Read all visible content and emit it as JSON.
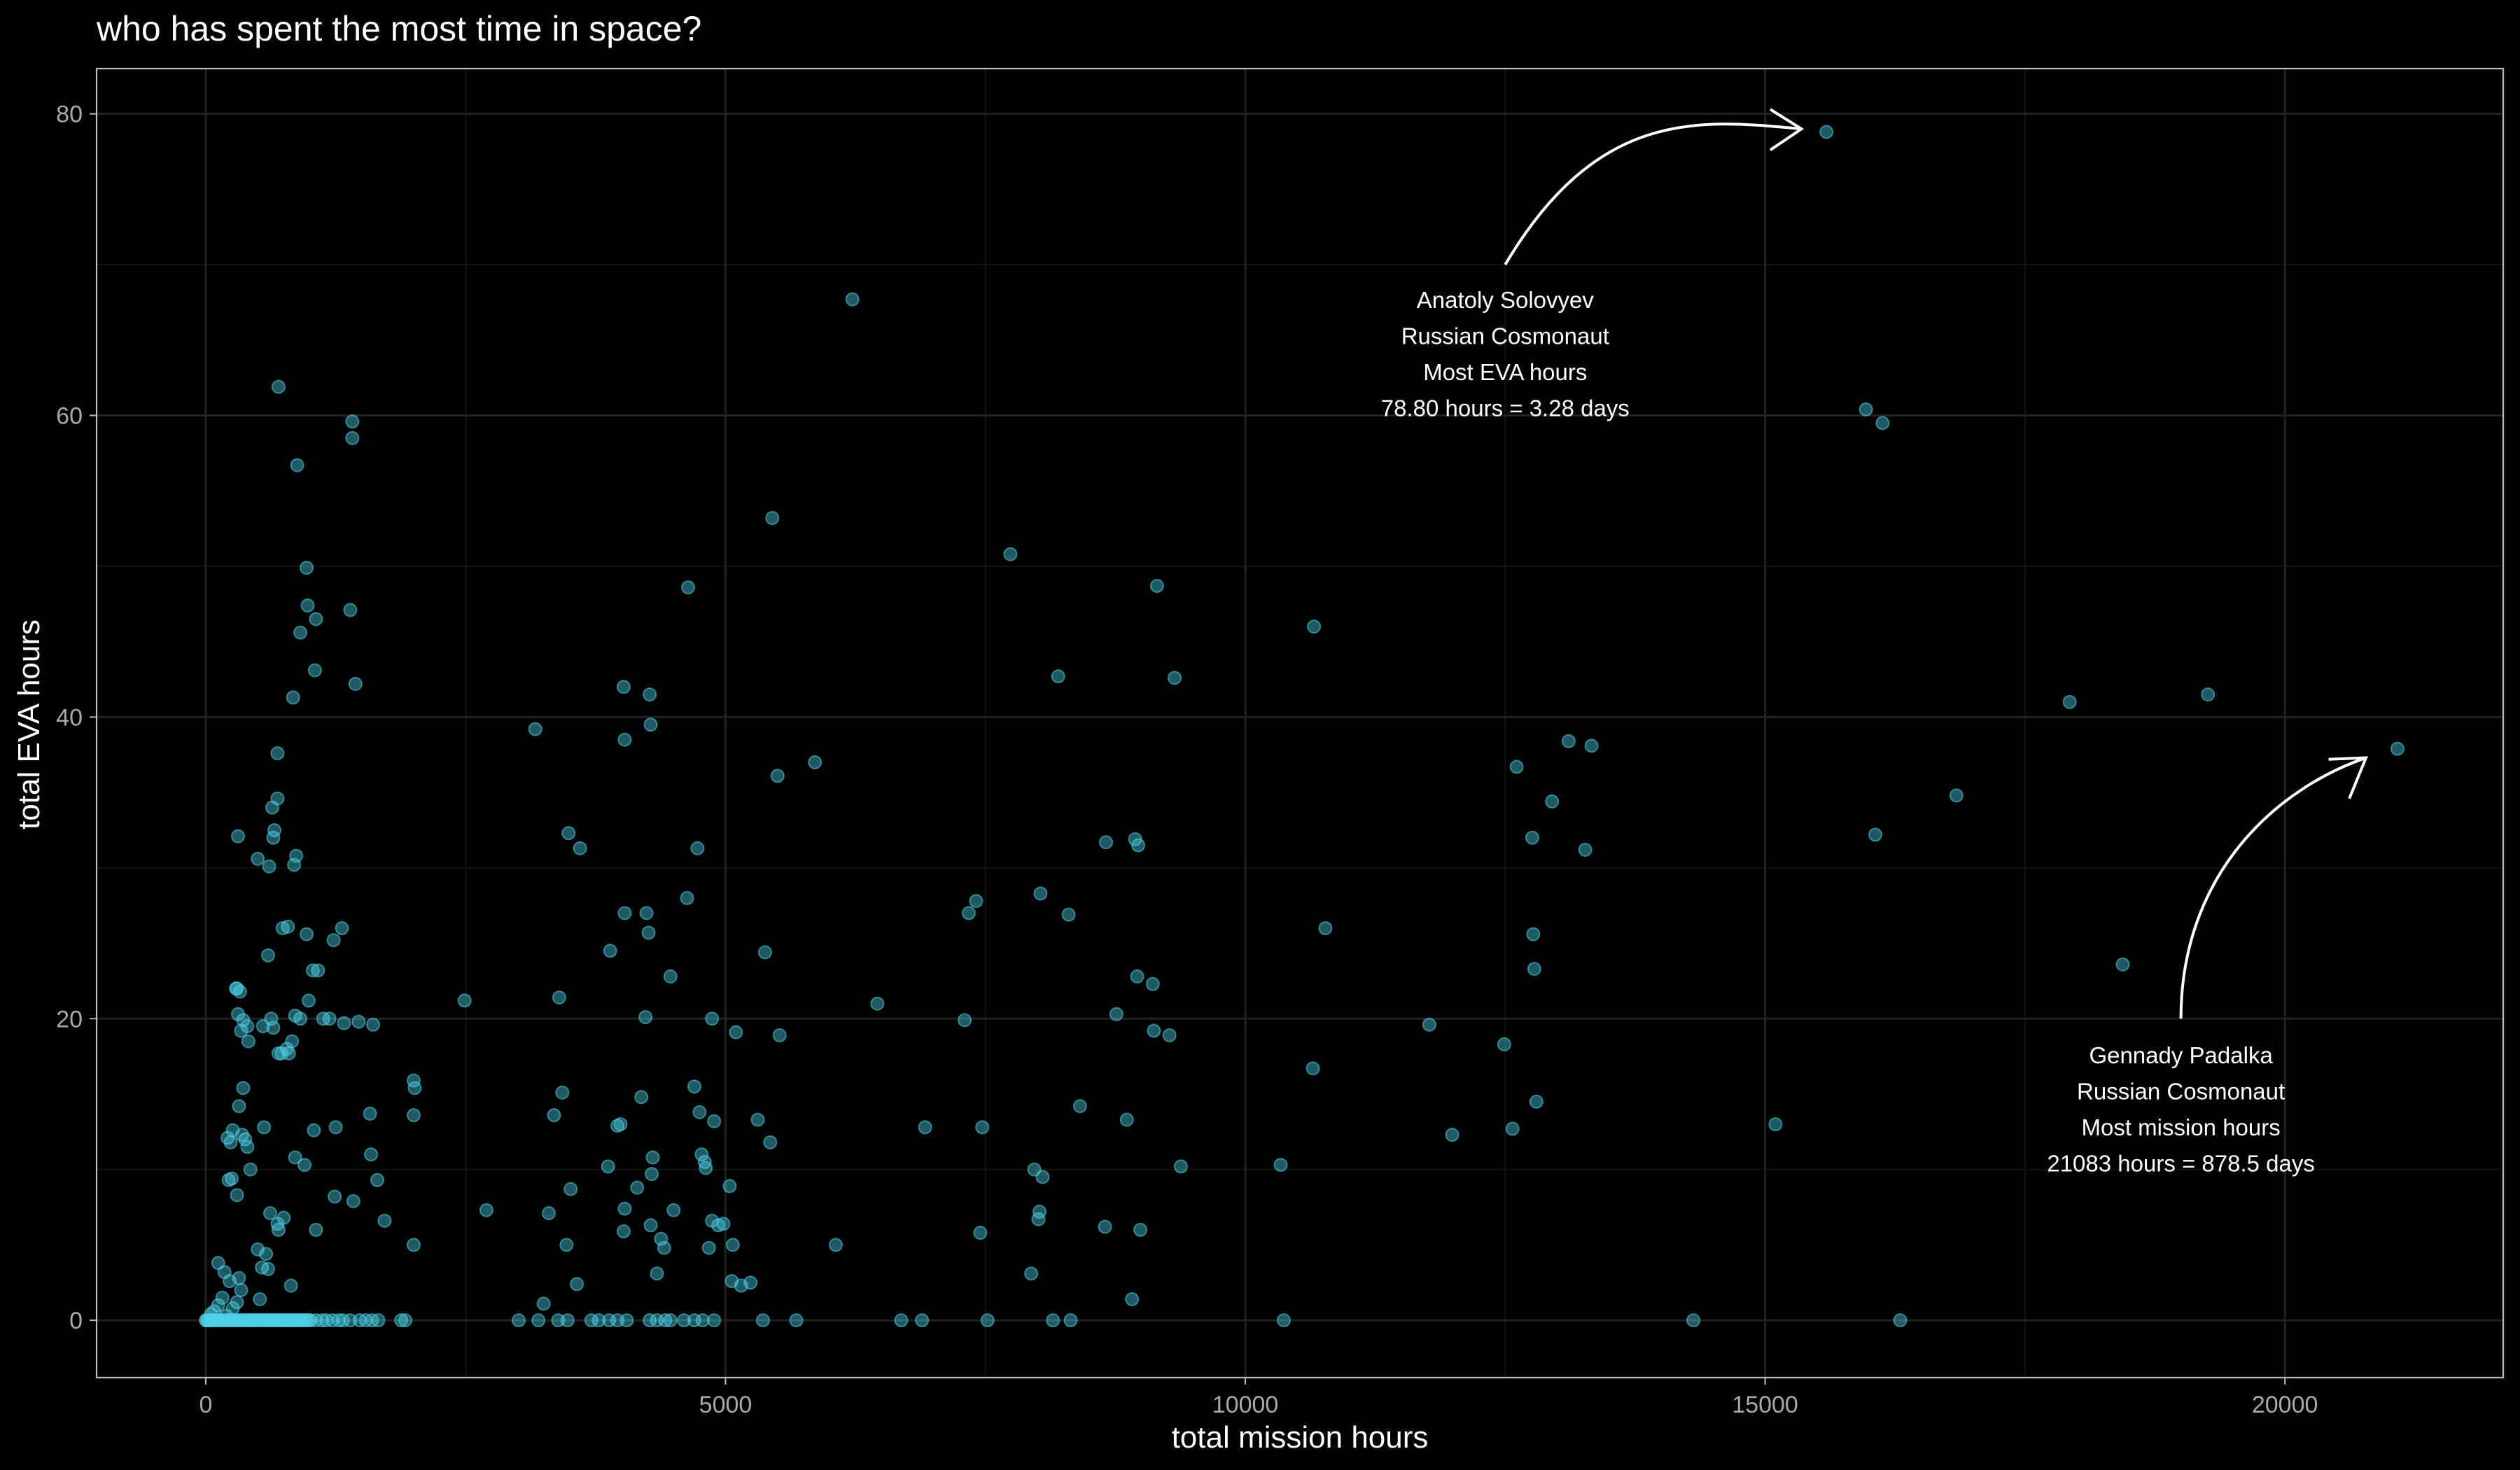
{
  "chart_data": {
    "type": "scatter",
    "title": "who has spent the most time in space?",
    "xlabel": "total mission hours",
    "ylabel": "total EVA hours",
    "xlim": [
      -1050,
      22100
    ],
    "ylim": [
      -3.8,
      83
    ],
    "x_ticks": [
      0,
      5000,
      10000,
      15000,
      20000
    ],
    "y_ticks": [
      0,
      20,
      40,
      60,
      80
    ],
    "grid": true,
    "colors": {
      "background": "#000000",
      "panel_border": "#bdbdbd",
      "grid_major": "#222222",
      "grid_minor": "#141414",
      "point": "#4fd3ea",
      "annotation": "#ffffff",
      "tick_text": "#a9a9a9"
    },
    "series": [
      {
        "points": [
          [
            0,
            0
          ],
          [
            10,
            0
          ],
          [
            20,
            0
          ],
          [
            30,
            0
          ],
          [
            45,
            0
          ],
          [
            60,
            0
          ],
          [
            75,
            0
          ],
          [
            90,
            0
          ],
          [
            110,
            0
          ],
          [
            130,
            0
          ],
          [
            150,
            0
          ],
          [
            170,
            0
          ],
          [
            190,
            0
          ],
          [
            210,
            0
          ],
          [
            230,
            0
          ],
          [
            250,
            0
          ],
          [
            270,
            0
          ],
          [
            290,
            0
          ],
          [
            310,
            0
          ],
          [
            330,
            0
          ],
          [
            350,
            0
          ],
          [
            370,
            0
          ],
          [
            390,
            0
          ],
          [
            410,
            0
          ],
          [
            430,
            0
          ],
          [
            450,
            0
          ],
          [
            470,
            0
          ],
          [
            490,
            0
          ],
          [
            510,
            0
          ],
          [
            530,
            0
          ],
          [
            550,
            0
          ],
          [
            570,
            0
          ],
          [
            590,
            0
          ],
          [
            610,
            0
          ],
          [
            630,
            0
          ],
          [
            650,
            0
          ],
          [
            670,
            0
          ],
          [
            690,
            0
          ],
          [
            710,
            0
          ],
          [
            730,
            0
          ],
          [
            750,
            0
          ],
          [
            770,
            0
          ],
          [
            790,
            0
          ],
          [
            810,
            0
          ],
          [
            830,
            0
          ],
          [
            850,
            0
          ],
          [
            870,
            0
          ],
          [
            890,
            0
          ],
          [
            910,
            0
          ],
          [
            930,
            0
          ],
          [
            950,
            0
          ],
          [
            970,
            0
          ],
          [
            990,
            0
          ],
          [
            1010,
            0
          ],
          [
            1060,
            0
          ],
          [
            1120,
            0
          ],
          [
            1160,
            0
          ],
          [
            1220,
            0
          ],
          [
            1280,
            0
          ],
          [
            1320,
            0
          ],
          [
            1390,
            0
          ],
          [
            1480,
            0
          ],
          [
            1540,
            0
          ],
          [
            1600,
            0
          ],
          [
            1660,
            0
          ],
          [
            1880,
            0
          ],
          [
            1920,
            0
          ],
          [
            3010,
            0
          ],
          [
            3200,
            0
          ],
          [
            3390,
            0
          ],
          [
            3480,
            0
          ],
          [
            3710,
            0
          ],
          [
            3780,
            0
          ],
          [
            3880,
            0
          ],
          [
            3960,
            0
          ],
          [
            4050,
            0
          ],
          [
            4270,
            0
          ],
          [
            4340,
            0
          ],
          [
            4420,
            0
          ],
          [
            4470,
            0
          ],
          [
            4600,
            0
          ],
          [
            4700,
            0
          ],
          [
            4780,
            0
          ],
          [
            4890,
            0
          ],
          [
            5360,
            0
          ],
          [
            5680,
            0
          ],
          [
            6690,
            0
          ],
          [
            6890,
            0
          ],
          [
            7520,
            0
          ],
          [
            8150,
            0
          ],
          [
            8320,
            0
          ],
          [
            10370,
            0
          ],
          [
            14310,
            0
          ],
          [
            16300,
            0
          ],
          [
            50,
            0.4
          ],
          [
            80,
            0.6
          ],
          [
            120,
            1
          ],
          [
            160,
            1.5
          ],
          [
            200,
            0.3
          ],
          [
            260,
            0.8
          ],
          [
            300,
            1.2
          ],
          [
            340,
            2
          ],
          [
            120,
            3.8
          ],
          [
            180,
            3.2
          ],
          [
            230,
            2.6
          ],
          [
            320,
            2.8
          ],
          [
            520,
            1.4
          ],
          [
            540,
            3.5
          ],
          [
            600,
            3.4
          ],
          [
            580,
            4.4
          ],
          [
            500,
            4.7
          ],
          [
            820,
            2.3
          ],
          [
            430,
            10
          ],
          [
            380,
            12
          ],
          [
            400,
            11.5
          ],
          [
            350,
            12.3
          ],
          [
            320,
            14.2
          ],
          [
            240,
            11.8
          ],
          [
            210,
            12.1
          ],
          [
            260,
            12.6
          ],
          [
            220,
            9.3
          ],
          [
            250,
            9.4
          ],
          [
            300,
            8.3
          ],
          [
            360,
            15.4
          ],
          [
            410,
            18.5
          ],
          [
            340,
            19.2
          ],
          [
            310,
            20.3
          ],
          [
            290,
            22
          ],
          [
            300,
            22
          ],
          [
            330,
            21.8
          ],
          [
            400,
            19.5
          ],
          [
            360,
            19.9
          ],
          [
            550,
            19.5
          ],
          [
            630,
            20
          ],
          [
            650,
            19.4
          ],
          [
            560,
            12.8
          ],
          [
            620,
            7.1
          ],
          [
            700,
            17.7
          ],
          [
            730,
            17.7
          ],
          [
            800,
            17.7
          ],
          [
            830,
            18.5
          ],
          [
            780,
            18
          ],
          [
            860,
            20.2
          ],
          [
            910,
            20
          ],
          [
            990,
            21.2
          ],
          [
            1030,
            23.2
          ],
          [
            1080,
            23.2
          ],
          [
            1130,
            20
          ],
          [
            1190,
            20
          ],
          [
            1230,
            25.2
          ],
          [
            1310,
            26
          ],
          [
            1330,
            19.7
          ],
          [
            1470,
            19.8
          ],
          [
            1610,
            19.6
          ],
          [
            1250,
            12.8
          ],
          [
            1040,
            12.6
          ],
          [
            860,
            10.8
          ],
          [
            950,
            10.3
          ],
          [
            1240,
            8.2
          ],
          [
            1420,
            7.9
          ],
          [
            1650,
            9.3
          ],
          [
            1590,
            11
          ],
          [
            1580,
            13.7
          ],
          [
            1720,
            6.6
          ],
          [
            1060,
            6
          ],
          [
            690,
            6.4
          ],
          [
            700,
            6
          ],
          [
            750,
            6.8
          ],
          [
            2000,
            5
          ],
          [
            2000,
            13.6
          ],
          [
            2010,
            15.4
          ],
          [
            2000,
            15.9
          ],
          [
            690,
            37.6
          ],
          [
            690,
            34.6
          ],
          [
            640,
            34
          ],
          [
            650,
            32
          ],
          [
            660,
            32.5
          ],
          [
            310,
            32.1
          ],
          [
            870,
            30.8
          ],
          [
            850,
            30.2
          ],
          [
            500,
            30.6
          ],
          [
            610,
            30.1
          ],
          [
            700,
            61.9
          ],
          [
            880,
            56.7
          ],
          [
            970,
            49.9
          ],
          [
            980,
            47.4
          ],
          [
            1060,
            46.5
          ],
          [
            1390,
            47.1
          ],
          [
            1410,
            59.6
          ],
          [
            1410,
            58.5
          ],
          [
            1440,
            42.2
          ],
          [
            1050,
            43.1
          ],
          [
            910,
            45.6
          ],
          [
            840,
            41.3
          ],
          [
            740,
            26
          ],
          [
            790,
            26.1
          ],
          [
            970,
            25.6
          ],
          [
            600,
            24.2
          ],
          [
            2490,
            21.2
          ],
          [
            2700,
            7.3
          ],
          [
            3170,
            39.2
          ],
          [
            3250,
            1.1
          ],
          [
            3300,
            7.1
          ],
          [
            3350,
            13.6
          ],
          [
            3400,
            21.4
          ],
          [
            3430,
            15.1
          ],
          [
            3470,
            5
          ],
          [
            3510,
            8.7
          ],
          [
            3490,
            32.3
          ],
          [
            3600,
            31.3
          ],
          [
            3570,
            2.4
          ],
          [
            3870,
            10.2
          ],
          [
            3890,
            24.5
          ],
          [
            3960,
            12.9
          ],
          [
            3990,
            13
          ],
          [
            4020,
            42
          ],
          [
            4030,
            38.5
          ],
          [
            4030,
            27
          ],
          [
            4020,
            5.9
          ],
          [
            4030,
            7.4
          ],
          [
            4150,
            8.8
          ],
          [
            4190,
            14.8
          ],
          [
            4230,
            20.1
          ],
          [
            4240,
            27
          ],
          [
            4260,
            25.7
          ],
          [
            4270,
            41.5
          ],
          [
            4280,
            39.5
          ],
          [
            4300,
            10.8
          ],
          [
            4290,
            9.7
          ],
          [
            4280,
            6.3
          ],
          [
            4340,
            3.1
          ],
          [
            4380,
            5.4
          ],
          [
            4410,
            4.8
          ],
          [
            4500,
            7.3
          ],
          [
            4470,
            22.8
          ],
          [
            4630,
            28
          ],
          [
            4640,
            48.6
          ],
          [
            4700,
            15.5
          ],
          [
            4730,
            31.3
          ],
          [
            4750,
            13.8
          ],
          [
            4770,
            11
          ],
          [
            4800,
            10.5
          ],
          [
            4810,
            10.1
          ],
          [
            4840,
            4.8
          ],
          [
            4870,
            20
          ],
          [
            4870,
            6.6
          ],
          [
            4890,
            13.2
          ],
          [
            4930,
            6.3
          ],
          [
            4980,
            6.4
          ],
          [
            5040,
            8.9
          ],
          [
            5060,
            2.6
          ],
          [
            5070,
            5
          ],
          [
            5100,
            19.1
          ],
          [
            5150,
            2.3
          ],
          [
            5240,
            2.5
          ],
          [
            5310,
            13.3
          ],
          [
            5380,
            24.4
          ],
          [
            5430,
            11.8
          ],
          [
            5450,
            53.2
          ],
          [
            5500,
            36.1
          ],
          [
            5520,
            18.9
          ],
          [
            5860,
            37
          ],
          [
            6060,
            5
          ],
          [
            6220,
            67.7
          ],
          [
            6460,
            21
          ],
          [
            6920,
            12.8
          ],
          [
            7300,
            19.9
          ],
          [
            7340,
            27
          ],
          [
            7410,
            27.8
          ],
          [
            7450,
            5.8
          ],
          [
            7470,
            12.8
          ],
          [
            7740,
            50.8
          ],
          [
            7940,
            3.1
          ],
          [
            7970,
            10
          ],
          [
            8010,
            6.7
          ],
          [
            8020,
            7.2
          ],
          [
            8030,
            28.3
          ],
          [
            8050,
            9.5
          ],
          [
            8200,
            42.7
          ],
          [
            8300,
            26.9
          ],
          [
            8410,
            14.2
          ],
          [
            8650,
            6.2
          ],
          [
            8660,
            31.7
          ],
          [
            8760,
            20.3
          ],
          [
            8860,
            13.3
          ],
          [
            8910,
            1.4
          ],
          [
            8940,
            31.9
          ],
          [
            8960,
            22.8
          ],
          [
            8970,
            31.5
          ],
          [
            8990,
            6
          ],
          [
            9110,
            22.3
          ],
          [
            9120,
            19.2
          ],
          [
            9150,
            48.7
          ],
          [
            9270,
            18.9
          ],
          [
            9320,
            42.6
          ],
          [
            9380,
            10.2
          ],
          [
            10340,
            10.3
          ],
          [
            10650,
            16.7
          ],
          [
            10660,
            46
          ],
          [
            10770,
            26
          ],
          [
            11770,
            19.6
          ],
          [
            11990,
            12.3
          ],
          [
            12490,
            18.3
          ],
          [
            12570,
            12.7
          ],
          [
            12610,
            36.7
          ],
          [
            12760,
            32
          ],
          [
            12770,
            25.6
          ],
          [
            12780,
            23.3
          ],
          [
            12800,
            14.5
          ],
          [
            12950,
            34.4
          ],
          [
            13110,
            38.4
          ],
          [
            13270,
            31.2
          ],
          [
            13330,
            38.1
          ],
          [
            15100,
            13
          ],
          [
            15590,
            78.8
          ],
          [
            15970,
            60.4
          ],
          [
            16060,
            32.2
          ],
          [
            16130,
            59.5
          ],
          [
            16840,
            34.8
          ],
          [
            17930,
            41
          ],
          [
            18440,
            23.6
          ],
          [
            19260,
            41.5
          ],
          [
            21083,
            37.9
          ]
        ]
      }
    ],
    "annotations": [
      {
        "lines": [
          "Anatoly Solovyev",
          "Russian Cosmonaut",
          "Most EVA hours",
          "78.80 hours = 3.28 days"
        ]
      },
      {
        "lines": [
          "Gennady Padalka",
          "Russian Cosmonaut",
          "Most mission hours",
          "21083 hours = 878.5 days"
        ]
      }
    ]
  }
}
